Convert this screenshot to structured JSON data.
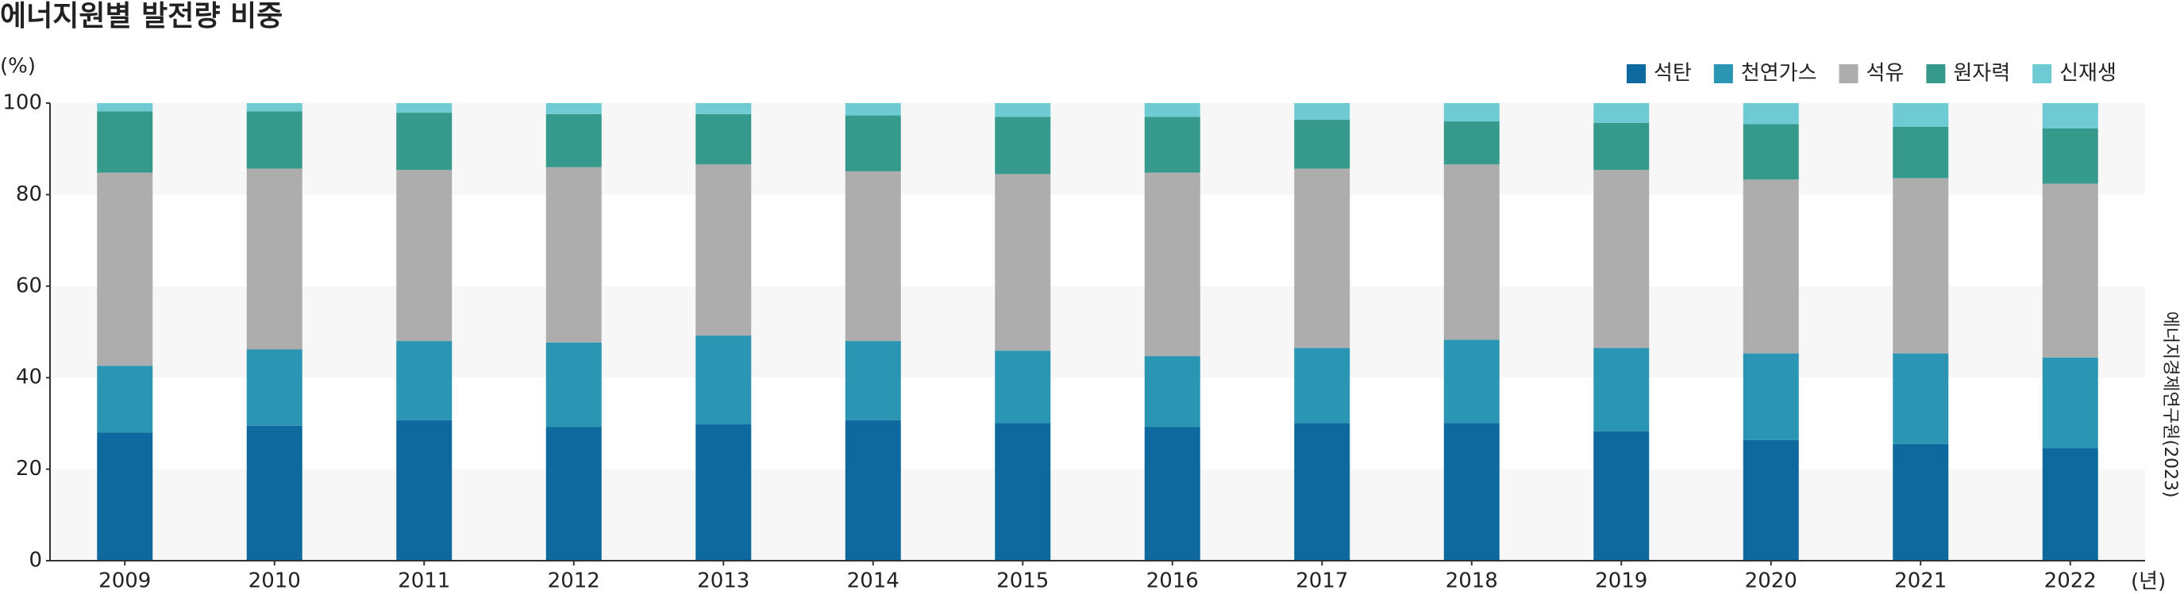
{
  "chart_data": {
    "type": "stacked_bar",
    "title": "에너지원별 발전량 비중",
    "y_unit": "(%)",
    "x_unit": "(년)",
    "source": "에너지경제연구원(2023)",
    "categories": [
      "2009",
      "2010",
      "2011",
      "2012",
      "2013",
      "2014",
      "2015",
      "2016",
      "2017",
      "2018",
      "2019",
      "2020",
      "2021",
      "2022"
    ],
    "series": [
      {
        "name": "석탄",
        "color": "#0e6a9e",
        "values": [
          28.0,
          29.5,
          30.7,
          29.2,
          29.8,
          30.7,
          30.1,
          29.2,
          30.1,
          30.1,
          28.3,
          26.4,
          25.5,
          24.6
        ]
      },
      {
        "name": "천연가스",
        "color": "#2a96b3",
        "values": [
          14.6,
          16.7,
          17.3,
          18.5,
          19.4,
          17.3,
          15.8,
          15.5,
          16.4,
          18.2,
          18.2,
          18.9,
          19.8,
          19.8
        ]
      },
      {
        "name": "석유",
        "color": "#adadad",
        "values": [
          42.2,
          39.5,
          37.4,
          38.3,
          37.4,
          37.1,
          38.6,
          40.1,
          39.2,
          38.3,
          38.9,
          38.0,
          38.3,
          38.0
        ]
      },
      {
        "name": "원자력",
        "color": "#35998b",
        "values": [
          13.4,
          12.5,
          12.5,
          11.6,
          11.0,
          12.2,
          12.5,
          12.2,
          10.7,
          9.4,
          10.3,
          12.1,
          11.2,
          12.1
        ]
      },
      {
        "name": "신재생",
        "color": "#6ecbd3",
        "values": [
          1.8,
          1.8,
          2.1,
          2.4,
          2.4,
          2.7,
          3.0,
          3.0,
          3.6,
          4.0,
          4.3,
          4.6,
          5.2,
          5.5
        ]
      }
    ],
    "ylim": [
      0,
      100
    ],
    "yticks": [
      0,
      20,
      40,
      60,
      80,
      100
    ],
    "legend": "top-right"
  }
}
